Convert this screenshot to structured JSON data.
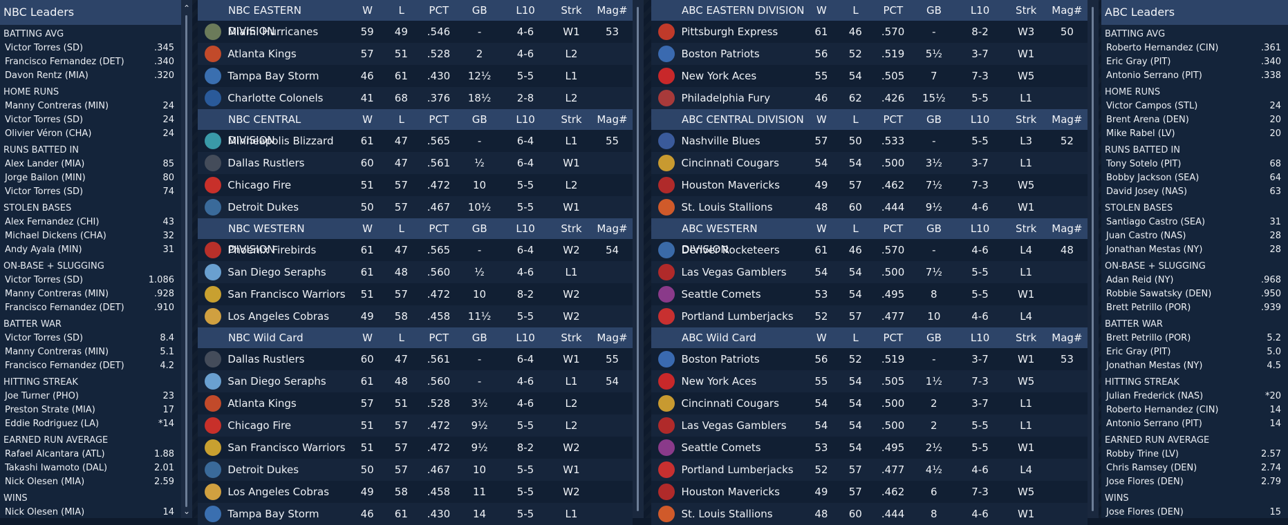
{
  "nbc_leaders": {
    "title": "NBC Leaders",
    "categories": [
      {
        "name": "BATTING AVG",
        "rows": [
          [
            "Victor Torres (SD)",
            ".345"
          ],
          [
            "Francisco Fernandez (DET)",
            ".340"
          ],
          [
            "Davon Rentz (MIA)",
            ".320"
          ]
        ]
      },
      {
        "name": "HOME RUNS",
        "rows": [
          [
            "Manny Contreras (MIN)",
            "24"
          ],
          [
            "Victor Torres (SD)",
            "24"
          ],
          [
            "Olivier Véron (CHA)",
            "24"
          ]
        ]
      },
      {
        "name": "RUNS BATTED IN",
        "rows": [
          [
            "Alex Lander (MIA)",
            "85"
          ],
          [
            "Jorge Bailon (MIN)",
            "80"
          ],
          [
            "Victor Torres (SD)",
            "74"
          ]
        ]
      },
      {
        "name": "STOLEN BASES",
        "rows": [
          [
            "Alex Fernandez (CHI)",
            "43"
          ],
          [
            "Michael Dickens (CHA)",
            "32"
          ],
          [
            "Andy Ayala (MIN)",
            "31"
          ]
        ]
      },
      {
        "name": "ON-BASE + SLUGGING",
        "rows": [
          [
            "Victor Torres (SD)",
            "1.086"
          ],
          [
            "Manny Contreras (MIN)",
            ".928"
          ],
          [
            "Francisco Fernandez (DET)",
            ".910"
          ]
        ]
      },
      {
        "name": "BATTER WAR",
        "rows": [
          [
            "Victor Torres (SD)",
            "8.4"
          ],
          [
            "Manny Contreras (MIN)",
            "5.1"
          ],
          [
            "Francisco Fernandez (DET)",
            "4.2"
          ]
        ]
      },
      {
        "name": "HITTING STREAK",
        "rows": [
          [
            "Joe Turner (PHO)",
            "23"
          ],
          [
            "Preston Strate (MIA)",
            "17"
          ],
          [
            "Eddie Rodriguez (LA)",
            "*14"
          ]
        ]
      },
      {
        "name": "EARNED RUN AVERAGE",
        "rows": [
          [
            "Rafael Alcantara (ATL)",
            "1.88"
          ],
          [
            "Takashi Iwamoto (DAL)",
            "2.01"
          ],
          [
            "Nick Olesen (MIA)",
            "2.59"
          ]
        ]
      },
      {
        "name": "WINS",
        "rows": [
          [
            "Nick Olesen (MIA)",
            "14"
          ]
        ]
      }
    ]
  },
  "abc_leaders": {
    "title": "ABC Leaders",
    "categories": [
      {
        "name": "BATTING AVG",
        "rows": [
          [
            "Roberto Hernandez (CIN)",
            ".361"
          ],
          [
            "Eric Gray (PIT)",
            ".340"
          ],
          [
            "Antonio Serrano (PIT)",
            ".338"
          ]
        ]
      },
      {
        "name": "HOME RUNS",
        "rows": [
          [
            "Victor Campos (STL)",
            "24"
          ],
          [
            "Brent Arena (DEN)",
            "20"
          ],
          [
            "Mike Rabel (LV)",
            "20"
          ]
        ]
      },
      {
        "name": "RUNS BATTED IN",
        "rows": [
          [
            "Tony Sotelo (PIT)",
            "68"
          ],
          [
            "Bobby Jackson (SEA)",
            "64"
          ],
          [
            "David Josey (NAS)",
            "63"
          ]
        ]
      },
      {
        "name": "STOLEN BASES",
        "rows": [
          [
            "Santiago Castro (SEA)",
            "31"
          ],
          [
            "Juan Castro (NAS)",
            "28"
          ],
          [
            "Jonathan Mestas (NY)",
            "28"
          ]
        ]
      },
      {
        "name": "ON-BASE + SLUGGING",
        "rows": [
          [
            "Adan Reid (NY)",
            ".968"
          ],
          [
            "Robbie Sawatsky (DEN)",
            ".950"
          ],
          [
            "Brett Petrillo (POR)",
            ".939"
          ]
        ]
      },
      {
        "name": "BATTER WAR",
        "rows": [
          [
            "Brett Petrillo (POR)",
            "5.2"
          ],
          [
            "Eric Gray (PIT)",
            "5.0"
          ],
          [
            "Jonathan Mestas (NY)",
            "4.5"
          ]
        ]
      },
      {
        "name": "HITTING STREAK",
        "rows": [
          [
            "Julian Frederick (NAS)",
            "*20"
          ],
          [
            "Roberto Hernandez (CIN)",
            "14"
          ],
          [
            "Antonio Serrano (PIT)",
            "14"
          ]
        ]
      },
      {
        "name": "EARNED RUN AVERAGE",
        "rows": [
          [
            "Robby Trine (LV)",
            "2.57"
          ],
          [
            "Chris Ramsey (DEN)",
            "2.74"
          ],
          [
            "Jose Flores (DEN)",
            "2.79"
          ]
        ]
      },
      {
        "name": "WINS",
        "rows": [
          [
            "Jose Flores (DEN)",
            "15"
          ]
        ]
      }
    ]
  },
  "columns": [
    "W",
    "L",
    "PCT",
    "GB",
    "L10",
    "Strk",
    "Mag#"
  ],
  "nbc_divisions": [
    {
      "title": "NBC EASTERN DIVISION",
      "teams": [
        {
          "name": "Miami Hurricanes",
          "logo": "hurricane-logo",
          "color": "#6b7b5a",
          "w": "59",
          "l": "49",
          "pct": ".546",
          "gb": "-",
          "l10": "4-6",
          "strk": "W1",
          "mag": "53"
        },
        {
          "name": "Atlanta Kings",
          "logo": "kings-logo",
          "color": "#c24a2a",
          "w": "57",
          "l": "51",
          "pct": ".528",
          "gb": "2",
          "l10": "4-6",
          "strk": "L2",
          "mag": ""
        },
        {
          "name": "Tampa Bay Storm",
          "logo": "storm-logo",
          "color": "#3a6fb0",
          "w": "46",
          "l": "61",
          "pct": ".430",
          "gb": "12½",
          "l10": "5-5",
          "strk": "L1",
          "mag": ""
        },
        {
          "name": "Charlotte Colonels",
          "logo": "colonels-logo",
          "color": "#2a5a9a",
          "w": "41",
          "l": "68",
          "pct": ".376",
          "gb": "18½",
          "l10": "2-8",
          "strk": "L2",
          "mag": ""
        }
      ]
    },
    {
      "title": "NBC CENTRAL DIVISION",
      "teams": [
        {
          "name": "Minneapolis Blizzard",
          "logo": "blizzard-logo",
          "color": "#3a9aa8",
          "w": "61",
          "l": "47",
          "pct": ".565",
          "gb": "-",
          "l10": "6-4",
          "strk": "L1",
          "mag": "55"
        },
        {
          "name": "Dallas Rustlers",
          "logo": "rustlers-logo",
          "color": "#444c5a",
          "w": "60",
          "l": "47",
          "pct": ".561",
          "gb": "½",
          "l10": "6-4",
          "strk": "W1",
          "mag": ""
        },
        {
          "name": "Chicago Fire",
          "logo": "fire-logo",
          "color": "#c8302a",
          "w": "51",
          "l": "57",
          "pct": ".472",
          "gb": "10",
          "l10": "5-5",
          "strk": "L2",
          "mag": ""
        },
        {
          "name": "Detroit Dukes",
          "logo": "dukes-logo",
          "color": "#3a6a9a",
          "w": "50",
          "l": "57",
          "pct": ".467",
          "gb": "10½",
          "l10": "5-5",
          "strk": "W1",
          "mag": ""
        }
      ]
    },
    {
      "title": "NBC WESTERN DIVISION",
      "teams": [
        {
          "name": "Phoenix Firebirds",
          "logo": "firebirds-logo",
          "color": "#b8302a",
          "w": "61",
          "l": "47",
          "pct": ".565",
          "gb": "-",
          "l10": "6-4",
          "strk": "W2",
          "mag": "54"
        },
        {
          "name": "San Diego Seraphs",
          "logo": "seraphs-logo",
          "color": "#6aa0d0",
          "w": "61",
          "l": "48",
          "pct": ".560",
          "gb": "½",
          "l10": "4-6",
          "strk": "L1",
          "mag": ""
        },
        {
          "name": "San Francisco Warriors",
          "logo": "warriors-logo",
          "color": "#c8a030",
          "w": "51",
          "l": "57",
          "pct": ".472",
          "gb": "10",
          "l10": "8-2",
          "strk": "W2",
          "mag": ""
        },
        {
          "name": "Los Angeles Cobras",
          "logo": "cobras-logo",
          "color": "#d0a040",
          "w": "49",
          "l": "58",
          "pct": ".458",
          "gb": "11½",
          "l10": "5-5",
          "strk": "W2",
          "mag": ""
        }
      ]
    },
    {
      "title": "NBC  Wild Card",
      "teams": [
        {
          "name": "Dallas Rustlers",
          "logo": "rustlers-logo",
          "color": "#444c5a",
          "w": "60",
          "l": "47",
          "pct": ".561",
          "gb": "-",
          "l10": "6-4",
          "strk": "W1",
          "mag": "55"
        },
        {
          "name": "San Diego Seraphs",
          "logo": "seraphs-logo",
          "color": "#6aa0d0",
          "w": "61",
          "l": "48",
          "pct": ".560",
          "gb": "-",
          "l10": "4-6",
          "strk": "L1",
          "mag": "54"
        },
        {
          "name": "Atlanta Kings",
          "logo": "kings-logo",
          "color": "#c24a2a",
          "w": "57",
          "l": "51",
          "pct": ".528",
          "gb": "3½",
          "l10": "4-6",
          "strk": "L2",
          "mag": ""
        },
        {
          "name": "Chicago Fire",
          "logo": "fire-logo",
          "color": "#c8302a",
          "w": "51",
          "l": "57",
          "pct": ".472",
          "gb": "9½",
          "l10": "5-5",
          "strk": "L2",
          "mag": ""
        },
        {
          "name": "San Francisco Warriors",
          "logo": "warriors-logo",
          "color": "#c8a030",
          "w": "51",
          "l": "57",
          "pct": ".472",
          "gb": "9½",
          "l10": "8-2",
          "strk": "W2",
          "mag": ""
        },
        {
          "name": "Detroit Dukes",
          "logo": "dukes-logo",
          "color": "#3a6a9a",
          "w": "50",
          "l": "57",
          "pct": ".467",
          "gb": "10",
          "l10": "5-5",
          "strk": "W1",
          "mag": ""
        },
        {
          "name": "Los Angeles Cobras",
          "logo": "cobras-logo",
          "color": "#d0a040",
          "w": "49",
          "l": "58",
          "pct": ".458",
          "gb": "11",
          "l10": "5-5",
          "strk": "W2",
          "mag": ""
        },
        {
          "name": "Tampa Bay Storm",
          "logo": "storm-logo",
          "color": "#3a6fb0",
          "w": "46",
          "l": "61",
          "pct": ".430",
          "gb": "14",
          "l10": "5-5",
          "strk": "L1",
          "mag": ""
        }
      ]
    }
  ],
  "abc_divisions": [
    {
      "title": "ABC EASTERN DIVISION",
      "teams": [
        {
          "name": "Pittsburgh Express",
          "logo": "express-logo",
          "color": "#c03a2a",
          "w": "61",
          "l": "46",
          "pct": ".570",
          "gb": "-",
          "l10": "8-2",
          "strk": "W3",
          "mag": "50"
        },
        {
          "name": "Boston Patriots",
          "logo": "patriots-logo",
          "color": "#3a6ab0",
          "w": "56",
          "l": "52",
          "pct": ".519",
          "gb": "5½",
          "l10": "3-7",
          "strk": "W1",
          "mag": ""
        },
        {
          "name": "New York Aces",
          "logo": "aces-logo",
          "color": "#c8282a",
          "w": "55",
          "l": "54",
          "pct": ".505",
          "gb": "7",
          "l10": "7-3",
          "strk": "W5",
          "mag": ""
        },
        {
          "name": "Philadelphia Fury",
          "logo": "fury-logo",
          "color": "#a83a3a",
          "w": "46",
          "l": "62",
          "pct": ".426",
          "gb": "15½",
          "l10": "5-5",
          "strk": "L1",
          "mag": ""
        }
      ]
    },
    {
      "title": "ABC CENTRAL DIVISION",
      "teams": [
        {
          "name": "Nashville Blues",
          "logo": "blues-logo",
          "color": "#3a5a9a",
          "w": "57",
          "l": "50",
          "pct": ".533",
          "gb": "-",
          "l10": "5-5",
          "strk": "L3",
          "mag": "52"
        },
        {
          "name": "Cincinnati Cougars",
          "logo": "cougars-logo",
          "color": "#c89a30",
          "w": "54",
          "l": "54",
          "pct": ".500",
          "gb": "3½",
          "l10": "3-7",
          "strk": "L1",
          "mag": ""
        },
        {
          "name": "Houston Mavericks",
          "logo": "mavericks-logo",
          "color": "#b02a2a",
          "w": "49",
          "l": "57",
          "pct": ".462",
          "gb": "7½",
          "l10": "7-3",
          "strk": "W5",
          "mag": ""
        },
        {
          "name": "St. Louis Stallions",
          "logo": "stallions-logo",
          "color": "#d05a2a",
          "w": "48",
          "l": "60",
          "pct": ".444",
          "gb": "9½",
          "l10": "4-6",
          "strk": "W1",
          "mag": ""
        }
      ]
    },
    {
      "title": "ABC WESTERN DIVISION",
      "teams": [
        {
          "name": "Denver Rocketeers",
          "logo": "rocketeers-logo",
          "color": "#3a6aa8",
          "w": "61",
          "l": "46",
          "pct": ".570",
          "gb": "-",
          "l10": "4-6",
          "strk": "L4",
          "mag": "48"
        },
        {
          "name": "Las Vegas Gamblers",
          "logo": "gamblers-logo",
          "color": "#b02a2a",
          "w": "54",
          "l": "54",
          "pct": ".500",
          "gb": "7½",
          "l10": "5-5",
          "strk": "L1",
          "mag": ""
        },
        {
          "name": "Seattle Comets",
          "logo": "comets-logo",
          "color": "#8a3a8a",
          "w": "53",
          "l": "54",
          "pct": ".495",
          "gb": "8",
          "l10": "5-5",
          "strk": "W1",
          "mag": ""
        },
        {
          "name": "Portland Lumberjacks",
          "logo": "lumberjacks-logo",
          "color": "#c83030",
          "w": "52",
          "l": "57",
          "pct": ".477",
          "gb": "10",
          "l10": "4-6",
          "strk": "L4",
          "mag": ""
        }
      ]
    },
    {
      "title": "ABC  Wild Card",
      "teams": [
        {
          "name": "Boston Patriots",
          "logo": "patriots-logo",
          "color": "#3a6ab0",
          "w": "56",
          "l": "52",
          "pct": ".519",
          "gb": "-",
          "l10": "3-7",
          "strk": "W1",
          "mag": "53"
        },
        {
          "name": "New York Aces",
          "logo": "aces-logo",
          "color": "#c8282a",
          "w": "55",
          "l": "54",
          "pct": ".505",
          "gb": "1½",
          "l10": "7-3",
          "strk": "W5",
          "mag": ""
        },
        {
          "name": "Cincinnati Cougars",
          "logo": "cougars-logo",
          "color": "#c89a30",
          "w": "54",
          "l": "54",
          "pct": ".500",
          "gb": "2",
          "l10": "3-7",
          "strk": "L1",
          "mag": ""
        },
        {
          "name": "Las Vegas Gamblers",
          "logo": "gamblers-logo",
          "color": "#b02a2a",
          "w": "54",
          "l": "54",
          "pct": ".500",
          "gb": "2",
          "l10": "5-5",
          "strk": "L1",
          "mag": ""
        },
        {
          "name": "Seattle Comets",
          "logo": "comets-logo",
          "color": "#8a3a8a",
          "w": "53",
          "l": "54",
          "pct": ".495",
          "gb": "2½",
          "l10": "5-5",
          "strk": "W1",
          "mag": ""
        },
        {
          "name": "Portland Lumberjacks",
          "logo": "lumberjacks-logo",
          "color": "#c83030",
          "w": "52",
          "l": "57",
          "pct": ".477",
          "gb": "4½",
          "l10": "4-6",
          "strk": "L4",
          "mag": ""
        },
        {
          "name": "Houston Mavericks",
          "logo": "mavericks-logo",
          "color": "#b02a2a",
          "w": "49",
          "l": "57",
          "pct": ".462",
          "gb": "6",
          "l10": "7-3",
          "strk": "W5",
          "mag": ""
        },
        {
          "name": "St. Louis Stallions",
          "logo": "stallions-logo",
          "color": "#d05a2a",
          "w": "48",
          "l": "60",
          "pct": ".444",
          "gb": "8",
          "l10": "4-6",
          "strk": "W1",
          "mag": ""
        }
      ]
    }
  ]
}
